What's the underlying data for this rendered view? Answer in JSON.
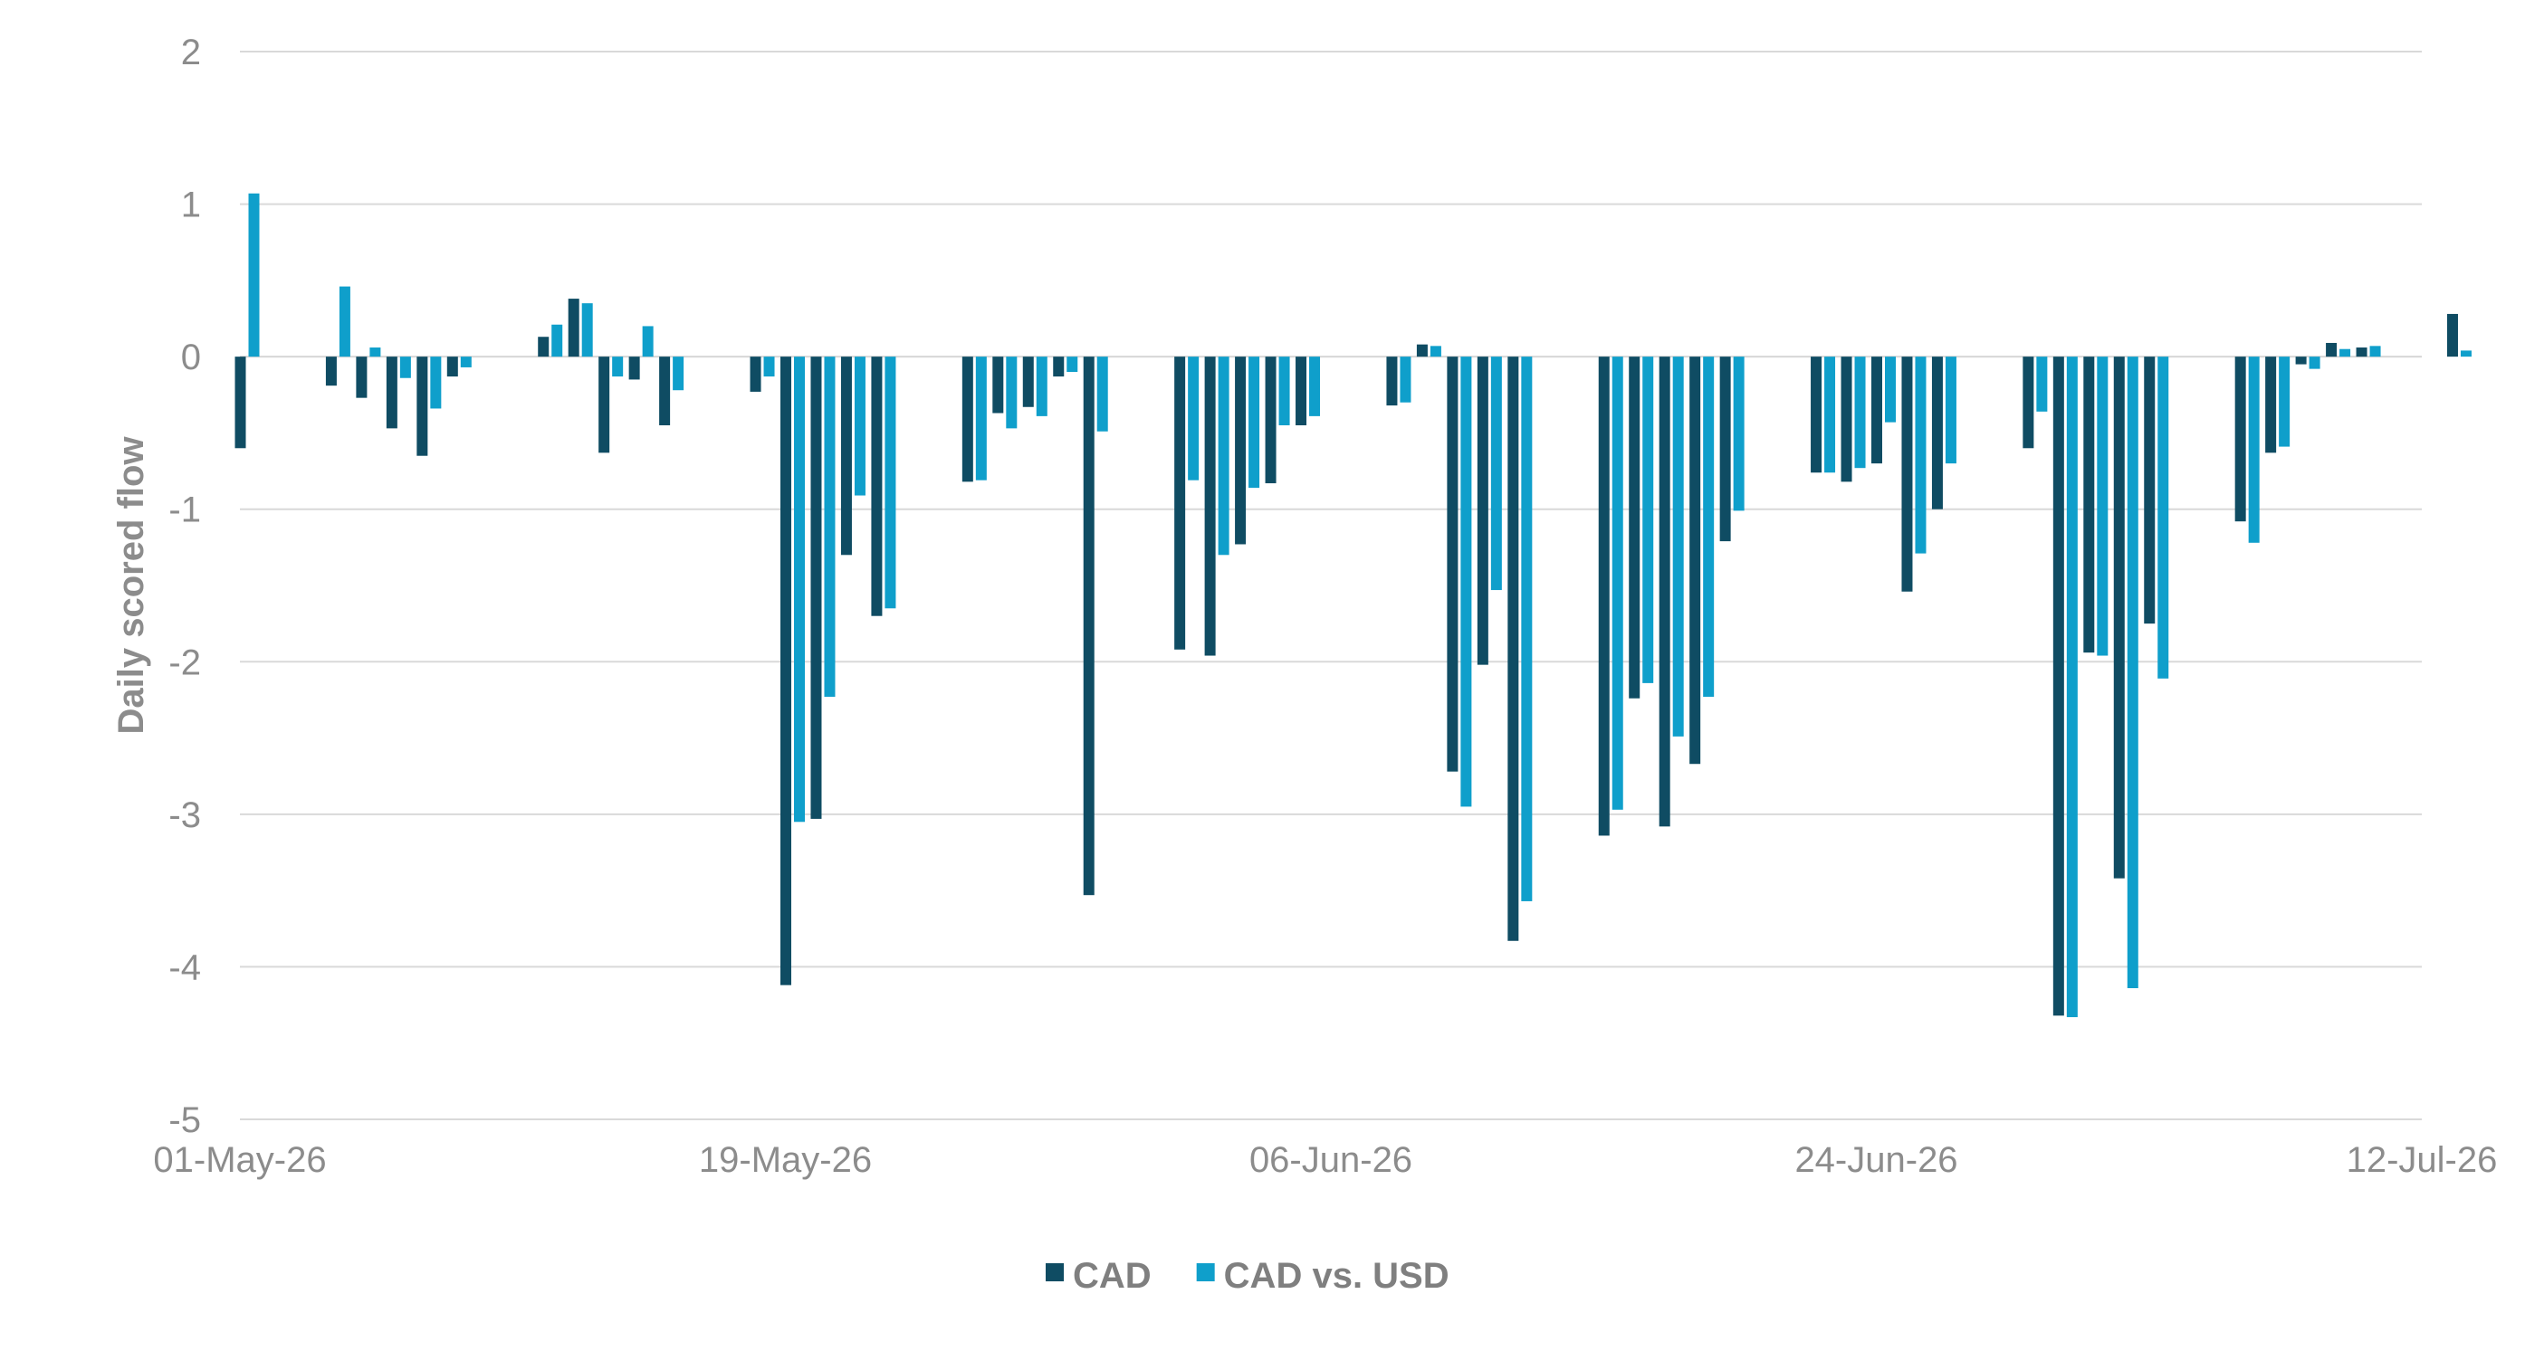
{
  "chart_data": {
    "type": "bar",
    "ylabel": "Daily scored flow",
    "xlabel": "",
    "ylim": [
      -5,
      2
    ],
    "yticks": [
      2,
      1,
      0,
      -1,
      -2,
      -3,
      -4,
      -5
    ],
    "x_tick_labels": [
      "01-May-26",
      "19-May-26",
      "06-Jun-26",
      "24-Jun-26",
      "12-Jul-26"
    ],
    "x_tick_dates": [
      "2026-05-01",
      "2026-05-19",
      "2026-06-06",
      "2026-06-24",
      "2026-07-12"
    ],
    "x_range": [
      "2026-05-01",
      "2026-07-12"
    ],
    "grid": "horizontal",
    "legend_position": "bottom",
    "colors": {
      "CAD": "#0f4c63",
      "CAD vs. USD": "#0f9fcb",
      "grid": "#d9d9d9",
      "text": "#8c8c8c"
    },
    "series": [
      {
        "name": "CAD",
        "points": [
          [
            "2026-05-01",
            -0.6
          ],
          [
            "2026-05-04",
            -0.19
          ],
          [
            "2026-05-05",
            -0.27
          ],
          [
            "2026-05-06",
            -0.47
          ],
          [
            "2026-05-07",
            -0.65
          ],
          [
            "2026-05-08",
            -0.13
          ],
          [
            "2026-05-11",
            0.13
          ],
          [
            "2026-05-12",
            0.38
          ],
          [
            "2026-05-13",
            -0.63
          ],
          [
            "2026-05-14",
            -0.15
          ],
          [
            "2026-05-15",
            -0.45
          ],
          [
            "2026-05-18",
            -0.23
          ],
          [
            "2026-05-19",
            -4.12
          ],
          [
            "2026-05-20",
            -3.03
          ],
          [
            "2026-05-21",
            -1.3
          ],
          [
            "2026-05-22",
            -1.7
          ],
          [
            "2026-05-25",
            -0.82
          ],
          [
            "2026-05-26",
            -0.37
          ],
          [
            "2026-05-27",
            -0.33
          ],
          [
            "2026-05-28",
            -0.13
          ],
          [
            "2026-05-29",
            -3.53
          ],
          [
            "2026-06-01",
            -1.92
          ],
          [
            "2026-06-02",
            -1.96
          ],
          [
            "2026-06-03",
            -1.23
          ],
          [
            "2026-06-04",
            -0.83
          ],
          [
            "2026-06-05",
            -0.45
          ],
          [
            "2026-06-08",
            -0.32
          ],
          [
            "2026-06-09",
            0.08
          ],
          [
            "2026-06-10",
            -2.72
          ],
          [
            "2026-06-11",
            -2.02
          ],
          [
            "2026-06-12",
            -3.83
          ],
          [
            "2026-06-15",
            -3.14
          ],
          [
            "2026-06-16",
            -2.24
          ],
          [
            "2026-06-17",
            -3.08
          ],
          [
            "2026-06-18",
            -2.67
          ],
          [
            "2026-06-19",
            -1.21
          ],
          [
            "2026-06-22",
            -0.76
          ],
          [
            "2026-06-23",
            -0.82
          ],
          [
            "2026-06-24",
            -0.7
          ],
          [
            "2026-06-25",
            -1.54
          ],
          [
            "2026-06-26",
            -1.0
          ],
          [
            "2026-06-29",
            -0.6
          ],
          [
            "2026-06-30",
            -4.32
          ],
          [
            "2026-07-01",
            -1.94
          ],
          [
            "2026-07-02",
            -3.42
          ],
          [
            "2026-07-03",
            -1.75
          ],
          [
            "2026-07-06",
            -1.08
          ],
          [
            "2026-07-07",
            -0.63
          ],
          [
            "2026-07-08",
            -0.05
          ],
          [
            "2026-07-09",
            0.09
          ],
          [
            "2026-07-10",
            0.06
          ],
          [
            "2026-07-13",
            0.28
          ]
        ]
      },
      {
        "name": "CAD vs. USD",
        "points": [
          [
            "2026-05-01",
            1.07
          ],
          [
            "2026-05-04",
            0.46
          ],
          [
            "2026-05-05",
            0.06
          ],
          [
            "2026-05-06",
            -0.14
          ],
          [
            "2026-05-07",
            -0.34
          ],
          [
            "2026-05-08",
            -0.07
          ],
          [
            "2026-05-11",
            0.21
          ],
          [
            "2026-05-12",
            0.35
          ],
          [
            "2026-05-13",
            -0.13
          ],
          [
            "2026-05-14",
            0.2
          ],
          [
            "2026-05-15",
            -0.22
          ],
          [
            "2026-05-18",
            -0.13
          ],
          [
            "2026-05-19",
            -3.05
          ],
          [
            "2026-05-20",
            -2.23
          ],
          [
            "2026-05-21",
            -0.91
          ],
          [
            "2026-05-22",
            -1.65
          ],
          [
            "2026-05-25",
            -0.81
          ],
          [
            "2026-05-26",
            -0.47
          ],
          [
            "2026-05-27",
            -0.39
          ],
          [
            "2026-05-28",
            -0.1
          ],
          [
            "2026-05-29",
            -0.49
          ],
          [
            "2026-06-01",
            -0.81
          ],
          [
            "2026-06-02",
            -1.3
          ],
          [
            "2026-06-03",
            -0.86
          ],
          [
            "2026-06-04",
            -0.45
          ],
          [
            "2026-06-05",
            -0.39
          ],
          [
            "2026-06-08",
            -0.3
          ],
          [
            "2026-06-09",
            0.07
          ],
          [
            "2026-06-10",
            -2.95
          ],
          [
            "2026-06-11",
            -1.53
          ],
          [
            "2026-06-12",
            -3.57
          ],
          [
            "2026-06-15",
            -2.97
          ],
          [
            "2026-06-16",
            -2.14
          ],
          [
            "2026-06-17",
            -2.49
          ],
          [
            "2026-06-18",
            -2.23
          ],
          [
            "2026-06-19",
            -1.01
          ],
          [
            "2026-06-22",
            -0.76
          ],
          [
            "2026-06-23",
            -0.73
          ],
          [
            "2026-06-24",
            -0.43
          ],
          [
            "2026-06-25",
            -1.29
          ],
          [
            "2026-06-26",
            -0.7
          ],
          [
            "2026-06-29",
            -0.36
          ],
          [
            "2026-06-30",
            -4.33
          ],
          [
            "2026-07-01",
            -1.96
          ],
          [
            "2026-07-02",
            -4.14
          ],
          [
            "2026-07-03",
            -2.11
          ],
          [
            "2026-07-06",
            -1.22
          ],
          [
            "2026-07-07",
            -0.59
          ],
          [
            "2026-07-08",
            -0.08
          ],
          [
            "2026-07-09",
            0.05
          ],
          [
            "2026-07-10",
            0.07
          ],
          [
            "2026-07-13",
            0.04
          ]
        ]
      }
    ]
  }
}
